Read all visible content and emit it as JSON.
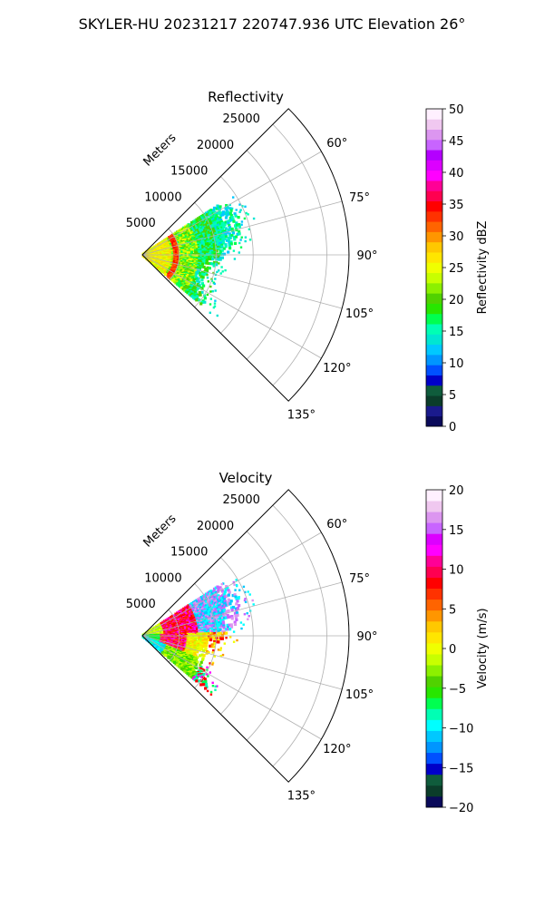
{
  "figure": {
    "suptitle": "SKYLER-HU  20231217  220747.936 UTC Elevation 26°"
  },
  "chart_data": [
    {
      "type": "heatmap",
      "projection": "polar-sector",
      "title": "Reflectivity",
      "range_axis_label": "Meters",
      "range_ticks": [
        5000,
        10000,
        15000,
        20000,
        25000
      ],
      "range_tick_labels": [
        "5000",
        "10000",
        "15000",
        "20000",
        "25000"
      ],
      "azimuth_range_deg": [
        45,
        135
      ],
      "azimuth_ticks": [
        60,
        75,
        90,
        105,
        120,
        135
      ],
      "azimuth_tick_labels": [
        "60°",
        "75°",
        "90°",
        "105°",
        "120°",
        "135°"
      ],
      "grid": true,
      "colorbar": {
        "label": "Reflectivity dBZ",
        "range": [
          0,
          50
        ],
        "ticks": [
          0,
          5,
          10,
          15,
          20,
          25,
          30,
          35,
          40,
          45,
          50
        ],
        "tick_labels": [
          "0",
          "5",
          "10",
          "15",
          "20",
          "25",
          "30",
          "35",
          "40",
          "45",
          "50"
        ],
        "colors": [
          "#0a0a5a",
          "#1a1a8c",
          "#0b3d2a",
          "#0f5c3c",
          "#0000c8",
          "#0050ff",
          "#0096ff",
          "#00c8ff",
          "#00e6d2",
          "#00ffb4",
          "#00ff50",
          "#28e600",
          "#50d200",
          "#8cf000",
          "#c8ff00",
          "#f0ff00",
          "#ffe600",
          "#ffc800",
          "#ff9600",
          "#ff6400",
          "#ff3200",
          "#ff0000",
          "#ff0050",
          "#ff0096",
          "#ff00ff",
          "#dc00ff",
          "#b400ff",
          "#c864ff",
          "#dc96f0",
          "#f0c8f0",
          "#fff0ff"
        ]
      },
      "echo": {
        "range_m": [
          0,
          14000
        ],
        "azimuth_deg": [
          57,
          131
        ]
      }
    },
    {
      "type": "heatmap",
      "projection": "polar-sector",
      "title": "Velocity",
      "range_axis_label": "Meters",
      "range_ticks": [
        5000,
        10000,
        15000,
        20000,
        25000
      ],
      "range_tick_labels": [
        "5000",
        "10000",
        "15000",
        "20000",
        "25000"
      ],
      "azimuth_range_deg": [
        45,
        135
      ],
      "azimuth_ticks": [
        60,
        75,
        90,
        105,
        120,
        135
      ],
      "azimuth_tick_labels": [
        "60°",
        "75°",
        "90°",
        "105°",
        "120°",
        "135°"
      ],
      "grid": true,
      "colorbar": {
        "label": "Velocity (m/s)",
        "range": [
          -20,
          20
        ],
        "ticks": [
          -20,
          -15,
          -10,
          -5,
          0,
          5,
          10,
          15,
          20
        ],
        "tick_labels": [
          "−20",
          "−15",
          "−10",
          "−5",
          "0",
          "5",
          "10",
          "15",
          "20"
        ],
        "colors": [
          "#0a0a5a",
          "#0b3d2a",
          "#0f5c3c",
          "#0000c8",
          "#0050ff",
          "#0096ff",
          "#00c8ff",
          "#00ffff",
          "#00ffb4",
          "#00ff50",
          "#28e600",
          "#50d200",
          "#8cf000",
          "#c8ff00",
          "#f0ff00",
          "#ffe600",
          "#ffc800",
          "#ff9600",
          "#ff6400",
          "#ff3200",
          "#ff0000",
          "#ff0050",
          "#ff0096",
          "#ff00ff",
          "#dc00ff",
          "#c864ff",
          "#dc96f0",
          "#f0c8f0",
          "#fff0ff"
        ]
      },
      "echo": {
        "range_m": [
          0,
          14000
        ],
        "azimuth_deg": [
          57,
          131
        ]
      }
    }
  ]
}
